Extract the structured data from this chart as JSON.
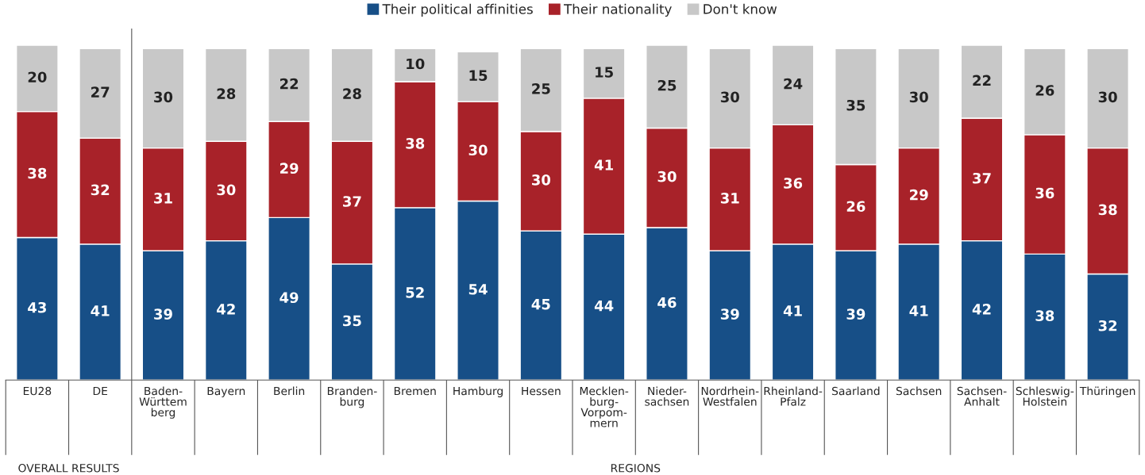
{
  "chart_data": {
    "type": "bar",
    "stacked": true,
    "data_labels": true,
    "legend": "top",
    "grid": false,
    "categories": [
      "EU28",
      "DE",
      "Baden-\nWürttem\nberg",
      "Bayern",
      "Berlin",
      "Branden-\nburg",
      "Bremen",
      "Hamburg",
      "Hessen",
      "Mecklen-\nburg-\nVorpom-\nmern",
      "Nieder-\nsachsen",
      "Nordrhein-\nWestfalen",
      "Rheinland-\nPfalz",
      "Saarland",
      "Sachsen",
      "Sachsen-\nAnhalt",
      "Schleswig-\nHolstein",
      "Thüringen"
    ],
    "series": [
      {
        "name": "Their political affinities",
        "color": "#174f87",
        "values": [
          43,
          41,
          39,
          42,
          49,
          35,
          52,
          54,
          45,
          44,
          46,
          39,
          41,
          39,
          41,
          42,
          38,
          32
        ]
      },
      {
        "name": "Their nationality",
        "color": "#a82229",
        "values": [
          38,
          32,
          31,
          30,
          29,
          37,
          38,
          30,
          30,
          41,
          30,
          31,
          36,
          26,
          29,
          37,
          36,
          38
        ]
      },
      {
        "name": "Don't know",
        "color": "#c8c8c8",
        "values": [
          20,
          27,
          30,
          28,
          22,
          28,
          10,
          15,
          25,
          15,
          25,
          30,
          24,
          35,
          30,
          22,
          26,
          30
        ]
      }
    ],
    "annotations": [
      "OVERALL RESULTS",
      "REGIONS"
    ]
  }
}
